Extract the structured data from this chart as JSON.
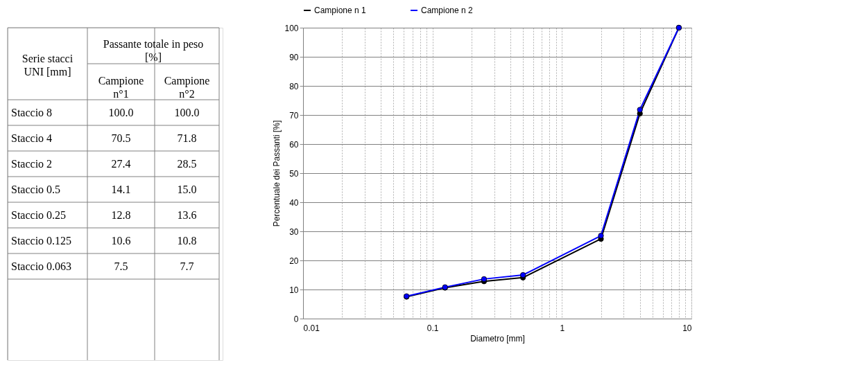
{
  "chart_data": [
    {
      "type": "other",
      "annotations": [
        "Serie stacci UNI [mm]",
        "Passante totale in peso [%]",
        "Campione n°1",
        "Campione n°2",
        "Staccio 8",
        "100.0",
        "100.0",
        "Staccio 4",
        "70.5",
        "71.8",
        "Staccio 2",
        "27.4",
        "28.5",
        "Staccio 0.5",
        "14.1",
        "15.0",
        "Staccio 0.25",
        "12.8",
        "13.6",
        "Staccio 0.125",
        "10.6",
        "10.8",
        "Staccio 0.063",
        "7.5",
        "7.7"
      ]
    },
    {
      "type": "line",
      "xlabel": "Diametro [mm]",
      "ylabel": "Percentuale dei Passanti [%]",
      "x": [
        8,
        4,
        2,
        0.5,
        0.25,
        0.125,
        0.063
      ],
      "series": [
        {
          "name": "Campione n 1",
          "color": "#000000",
          "values": [
            100.0,
            70.5,
            27.4,
            14.1,
            12.8,
            10.6,
            7.5
          ]
        },
        {
          "name": "Campione n 2",
          "color": "#0000ff",
          "values": [
            100.0,
            71.8,
            28.5,
            15.0,
            13.6,
            10.8,
            7.7
          ]
        }
      ],
      "log": "x",
      "xlim": [
        0.01,
        10
      ],
      "xticks": [
        0.01,
        {
          "value": 0.02,
          "label": null
        },
        {
          "value": 0.03,
          "label": null
        },
        {
          "value": 0.04,
          "label": null
        },
        {
          "value": 0.05,
          "label": null
        },
        {
          "value": 0.06,
          "label": null
        },
        {
          "value": 0.07,
          "label": null
        },
        {
          "value": 0.08,
          "label": null
        },
        {
          "value": 0.09,
          "label": null
        },
        0.1,
        {
          "value": 0.2,
          "label": null
        },
        {
          "value": 0.3,
          "label": null
        },
        {
          "value": 0.4,
          "label": null
        },
        {
          "value": 0.5,
          "label": null
        },
        {
          "value": 0.6,
          "label": null
        },
        {
          "value": 0.7,
          "label": null
        },
        {
          "value": 0.8,
          "label": null
        },
        {
          "value": 0.9,
          "label": null
        },
        1,
        {
          "value": 2,
          "label": null
        },
        {
          "value": 3,
          "label": null
        },
        {
          "value": 4,
          "label": null
        },
        {
          "value": 5,
          "label": null
        },
        {
          "value": 6,
          "label": null
        },
        {
          "value": 7,
          "label": null
        },
        {
          "value": 8,
          "label": null
        },
        {
          "value": 9,
          "label": null
        },
        10
      ],
      "ylim": [
        0,
        100
      ],
      "yticks": [
        0,
        10,
        20,
        30,
        40,
        50,
        60,
        70,
        80,
        90,
        100
      ],
      "grid": true,
      "legend": "top",
      "marker": "circle",
      "line_style": "solid"
    }
  ]
}
